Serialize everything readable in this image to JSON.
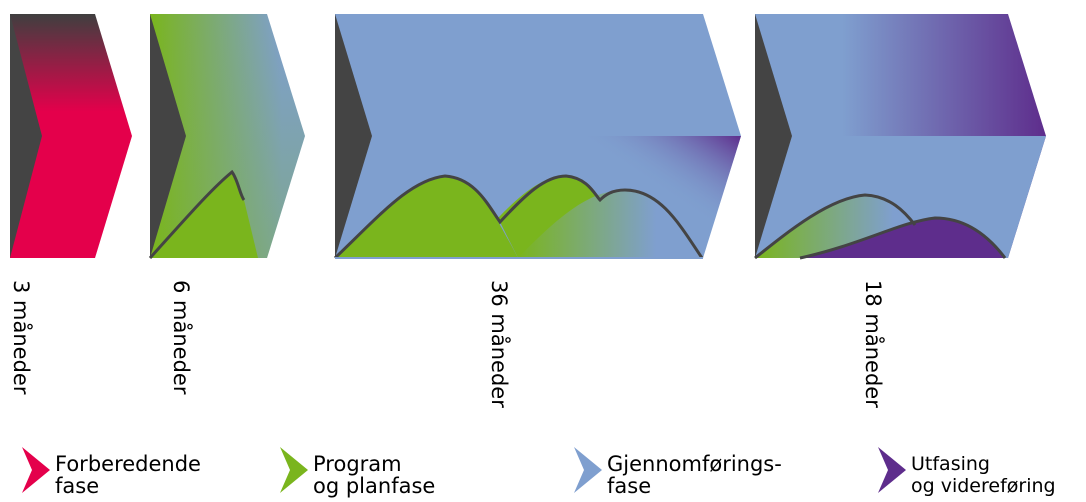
{
  "phases": [
    {
      "id": "forberedende",
      "duration": "3 måneder"
    },
    {
      "id": "program",
      "duration": "6 måneder"
    },
    {
      "id": "gjennomforing",
      "duration": "36 måneder"
    },
    {
      "id": "utfasing",
      "duration": "18 måneder"
    }
  ],
  "legend": [
    {
      "line1": "Forberedende",
      "line2": "fase",
      "color": "#e4004b"
    },
    {
      "line1": "Program",
      "line2": "og planfase",
      "color": "#7ab51d"
    },
    {
      "line1": "Gjennomførings-",
      "line2": "fase",
      "color": "#7f9fcf"
    },
    {
      "line1": "Utfasing",
      "line2": "og videreføring",
      "color": "#5e2d8c"
    }
  ],
  "colors": {
    "red": "#e4004b",
    "green": "#7ab51d",
    "blue": "#7f9fcf",
    "purple": "#5e2d8c",
    "dark": "#444444"
  }
}
